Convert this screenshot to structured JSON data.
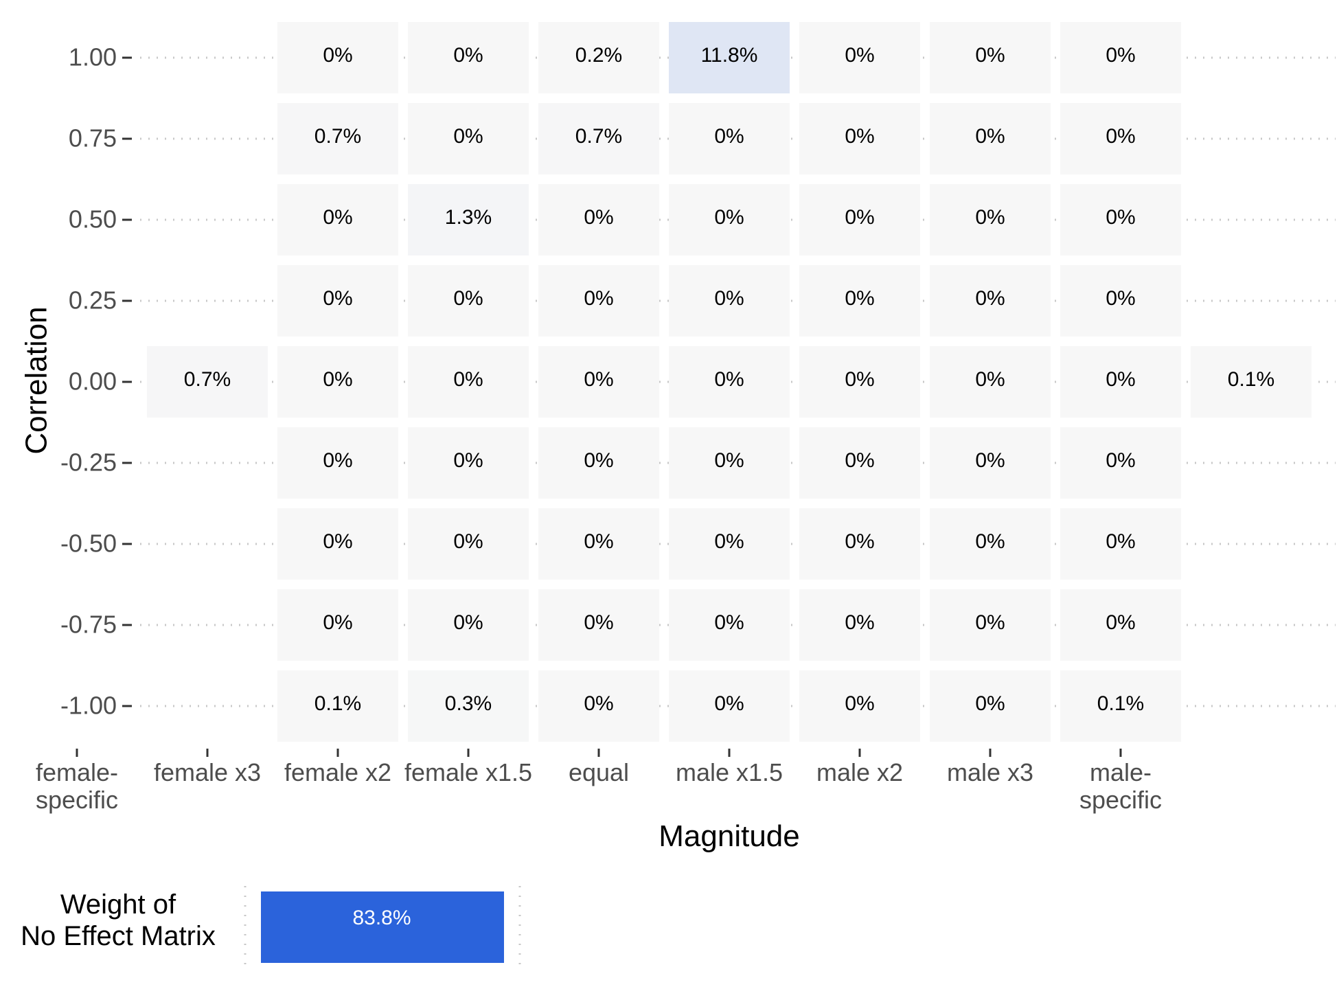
{
  "chart_data": [
    {
      "type": "heatmap",
      "xlabel": "Magnitude",
      "ylabel": "Correlation",
      "x_categories": [
        [
          "female-",
          "specific"
        ],
        [
          "female x3"
        ],
        [
          "female x2"
        ],
        [
          "female x1.5"
        ],
        [
          "equal"
        ],
        [
          "male x1.5"
        ],
        [
          "male x2"
        ],
        [
          "male x3"
        ],
        [
          "male-",
          "specific"
        ]
      ],
      "y_ticks": [
        "1.00",
        "0.75",
        "0.50",
        "0.25",
        "0.00",
        "-0.25",
        "-0.50",
        "-0.75",
        "-1.00"
      ],
      "grid": "dotted horizontal",
      "color_low": "#f7f7f7",
      "color_high": "#2b63db",
      "cells": [
        {
          "x": 1,
          "y": "1.00",
          "value": 0,
          "label": "0%"
        },
        {
          "x": 2,
          "y": "1.00",
          "value": 0,
          "label": "0%"
        },
        {
          "x": 3,
          "y": "1.00",
          "value": 0.2,
          "label": "0.2%"
        },
        {
          "x": 4,
          "y": "1.00",
          "value": 11.8,
          "label": "11.8%"
        },
        {
          "x": 5,
          "y": "1.00",
          "value": 0,
          "label": "0%"
        },
        {
          "x": 6,
          "y": "1.00",
          "value": 0,
          "label": "0%"
        },
        {
          "x": 7,
          "y": "1.00",
          "value": 0,
          "label": "0%"
        },
        {
          "x": 1,
          "y": "0.75",
          "value": 0.7,
          "label": "0.7%"
        },
        {
          "x": 2,
          "y": "0.75",
          "value": 0,
          "label": "0%"
        },
        {
          "x": 3,
          "y": "0.75",
          "value": 0.7,
          "label": "0.7%"
        },
        {
          "x": 4,
          "y": "0.75",
          "value": 0,
          "label": "0%"
        },
        {
          "x": 5,
          "y": "0.75",
          "value": 0,
          "label": "0%"
        },
        {
          "x": 6,
          "y": "0.75",
          "value": 0,
          "label": "0%"
        },
        {
          "x": 7,
          "y": "0.75",
          "value": 0,
          "label": "0%"
        },
        {
          "x": 1,
          "y": "0.50",
          "value": 0,
          "label": "0%"
        },
        {
          "x": 2,
          "y": "0.50",
          "value": 1.3,
          "label": "1.3%"
        },
        {
          "x": 3,
          "y": "0.50",
          "value": 0,
          "label": "0%"
        },
        {
          "x": 4,
          "y": "0.50",
          "value": 0,
          "label": "0%"
        },
        {
          "x": 5,
          "y": "0.50",
          "value": 0,
          "label": "0%"
        },
        {
          "x": 6,
          "y": "0.50",
          "value": 0,
          "label": "0%"
        },
        {
          "x": 7,
          "y": "0.50",
          "value": 0,
          "label": "0%"
        },
        {
          "x": 1,
          "y": "0.25",
          "value": 0,
          "label": "0%"
        },
        {
          "x": 2,
          "y": "0.25",
          "value": 0,
          "label": "0%"
        },
        {
          "x": 3,
          "y": "0.25",
          "value": 0,
          "label": "0%"
        },
        {
          "x": 4,
          "y": "0.25",
          "value": 0,
          "label": "0%"
        },
        {
          "x": 5,
          "y": "0.25",
          "value": 0,
          "label": "0%"
        },
        {
          "x": 6,
          "y": "0.25",
          "value": 0,
          "label": "0%"
        },
        {
          "x": 7,
          "y": "0.25",
          "value": 0,
          "label": "0%"
        },
        {
          "x": 0,
          "y": "0.00",
          "value": 0.7,
          "label": "0.7%"
        },
        {
          "x": 1,
          "y": "0.00",
          "value": 0,
          "label": "0%"
        },
        {
          "x": 2,
          "y": "0.00",
          "value": 0,
          "label": "0%"
        },
        {
          "x": 3,
          "y": "0.00",
          "value": 0,
          "label": "0%"
        },
        {
          "x": 4,
          "y": "0.00",
          "value": 0,
          "label": "0%"
        },
        {
          "x": 5,
          "y": "0.00",
          "value": 0,
          "label": "0%"
        },
        {
          "x": 6,
          "y": "0.00",
          "value": 0,
          "label": "0%"
        },
        {
          "x": 7,
          "y": "0.00",
          "value": 0,
          "label": "0%"
        },
        {
          "x": 8,
          "y": "0.00",
          "value": 0.1,
          "label": "0.1%"
        },
        {
          "x": 1,
          "y": "-0.25",
          "value": 0,
          "label": "0%"
        },
        {
          "x": 2,
          "y": "-0.25",
          "value": 0,
          "label": "0%"
        },
        {
          "x": 3,
          "y": "-0.25",
          "value": 0,
          "label": "0%"
        },
        {
          "x": 4,
          "y": "-0.25",
          "value": 0,
          "label": "0%"
        },
        {
          "x": 5,
          "y": "-0.25",
          "value": 0,
          "label": "0%"
        },
        {
          "x": 6,
          "y": "-0.25",
          "value": 0,
          "label": "0%"
        },
        {
          "x": 7,
          "y": "-0.25",
          "value": 0,
          "label": "0%"
        },
        {
          "x": 1,
          "y": "-0.50",
          "value": 0,
          "label": "0%"
        },
        {
          "x": 2,
          "y": "-0.50",
          "value": 0,
          "label": "0%"
        },
        {
          "x": 3,
          "y": "-0.50",
          "value": 0,
          "label": "0%"
        },
        {
          "x": 4,
          "y": "-0.50",
          "value": 0,
          "label": "0%"
        },
        {
          "x": 5,
          "y": "-0.50",
          "value": 0,
          "label": "0%"
        },
        {
          "x": 6,
          "y": "-0.50",
          "value": 0,
          "label": "0%"
        },
        {
          "x": 7,
          "y": "-0.50",
          "value": 0,
          "label": "0%"
        },
        {
          "x": 1,
          "y": "-0.75",
          "value": 0,
          "label": "0%"
        },
        {
          "x": 2,
          "y": "-0.75",
          "value": 0,
          "label": "0%"
        },
        {
          "x": 3,
          "y": "-0.75",
          "value": 0,
          "label": "0%"
        },
        {
          "x": 4,
          "y": "-0.75",
          "value": 0,
          "label": "0%"
        },
        {
          "x": 5,
          "y": "-0.75",
          "value": 0,
          "label": "0%"
        },
        {
          "x": 6,
          "y": "-0.75",
          "value": 0,
          "label": "0%"
        },
        {
          "x": 7,
          "y": "-0.75",
          "value": 0,
          "label": "0%"
        },
        {
          "x": 1,
          "y": "-1.00",
          "value": 0.1,
          "label": "0.1%"
        },
        {
          "x": 2,
          "y": "-1.00",
          "value": 0.3,
          "label": "0.3%"
        },
        {
          "x": 3,
          "y": "-1.00",
          "value": 0,
          "label": "0%"
        },
        {
          "x": 4,
          "y": "-1.00",
          "value": 0,
          "label": "0%"
        },
        {
          "x": 5,
          "y": "-1.00",
          "value": 0,
          "label": "0%"
        },
        {
          "x": 6,
          "y": "-1.00",
          "value": 0,
          "label": "0%"
        },
        {
          "x": 7,
          "y": "-1.00",
          "value": 0.1,
          "label": "0.1%"
        }
      ]
    },
    {
      "type": "heatmap",
      "row_label": [
        "Weight of",
        "No Effect Matrix"
      ],
      "value": 83.8,
      "label": "83.8%",
      "color": "#2b63db"
    }
  ]
}
